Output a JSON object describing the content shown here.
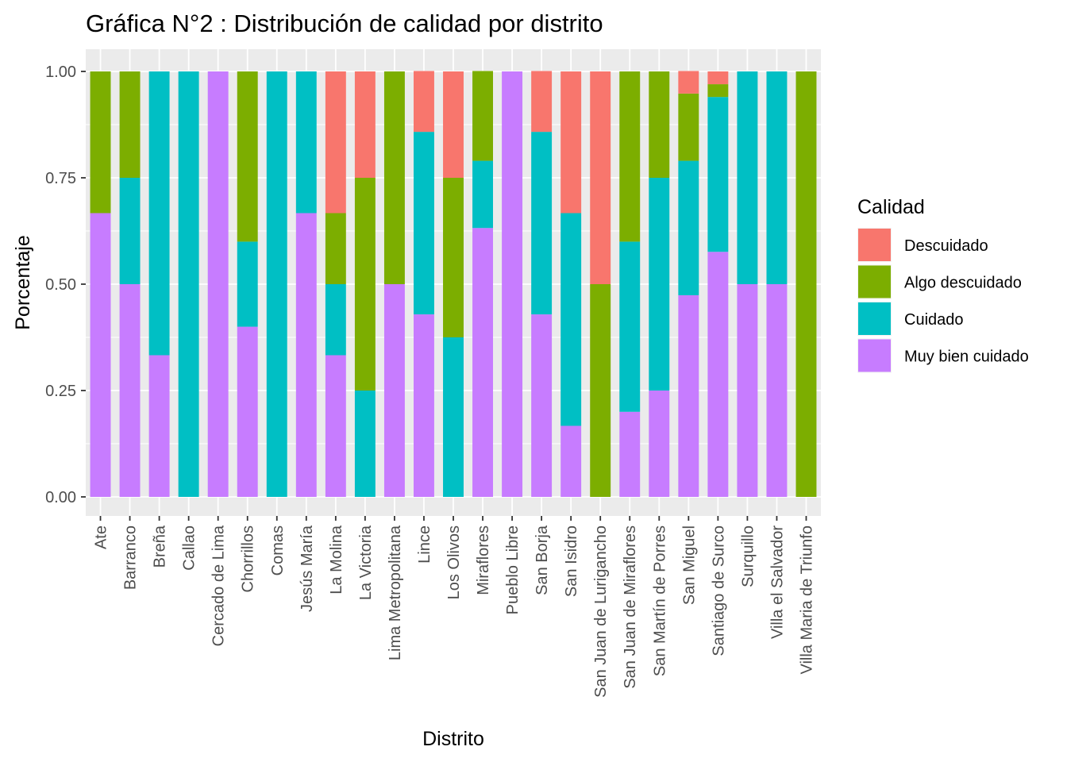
{
  "chart_data": {
    "type": "bar",
    "stacked": true,
    "title": "Gráfica N°2 : Distribución de calidad por distrito",
    "xlabel": "Distrito",
    "ylabel": "Porcentaje",
    "ylim": [
      0,
      1
    ],
    "yticks": [
      "0.00",
      "0.25",
      "0.50",
      "0.75",
      "1.00"
    ],
    "ytick_values": [
      0,
      0.25,
      0.5,
      0.75,
      1
    ],
    "grid": true,
    "legend_title": "Calidad",
    "legend_position": "right",
    "categories": [
      "Ate",
      "Barranco",
      "Breña",
      "Callao",
      "Cercado de Lima",
      "Chorrillos",
      "Comas",
      "Jesús María",
      "La Molina",
      "La Victoria",
      "Lima Metropolitana",
      "Lince",
      "Los Olivos",
      "Miraflores",
      "Pueblo Libre",
      "San Borja",
      "San Isidro",
      "San Juan de Lurigancho",
      "San Juan de Miraflores",
      "San Martín de Porres",
      "San Miguel",
      "Santiago de Surco",
      "Surquillo",
      "Villa el Salvador",
      "Villa Maria de Triunfo"
    ],
    "series": [
      {
        "name": "Muy bien cuidado",
        "color": "#C77CFF",
        "values": [
          0.667,
          0.5,
          0.333,
          0,
          1,
          0.4,
          0,
          0.667,
          0.333,
          0,
          0.5,
          0.429,
          0,
          0.632,
          1,
          0.429,
          0.167,
          0,
          0.2,
          0.25,
          0.474,
          0.576,
          0.5,
          0.5,
          0
        ]
      },
      {
        "name": "Cuidado",
        "color": "#00BFC4",
        "values": [
          0,
          0.25,
          0.667,
          1,
          0,
          0.2,
          1,
          0.333,
          0.167,
          0.25,
          0,
          0.429,
          0.375,
          0.158,
          0,
          0.429,
          0.5,
          0,
          0.4,
          0.5,
          0.316,
          0.364,
          0.5,
          0.5,
          0
        ]
      },
      {
        "name": "Algo descuidado",
        "color": "#7CAE00",
        "values": [
          0.333,
          0.25,
          0,
          0,
          0,
          0.4,
          0,
          0,
          0.167,
          0.5,
          0.5,
          0,
          0.375,
          0.211,
          0,
          0,
          0,
          0.5,
          0.4,
          0.25,
          0.158,
          0.03,
          0,
          0,
          1
        ]
      },
      {
        "name": "Descuidado",
        "color": "#F8766D",
        "values": [
          0,
          0,
          0,
          0,
          0,
          0,
          0,
          0,
          0.333,
          0.25,
          0,
          0.143,
          0.25,
          0,
          0,
          0.143,
          0.333,
          0.5,
          0,
          0,
          0.053,
          0.03,
          0,
          0,
          0
        ]
      }
    ],
    "legend_order": [
      "Descuidado",
      "Algo descuidado",
      "Cuidado",
      "Muy bien cuidado"
    ]
  }
}
